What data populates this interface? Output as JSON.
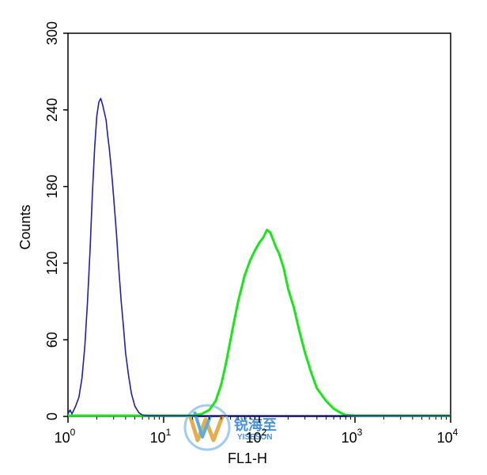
{
  "chart_data": {
    "type": "line",
    "xlabel": "FL1-H",
    "ylabel": "Counts",
    "x_scale": "log",
    "xlim": [
      1,
      10000
    ],
    "ylim": [
      0,
      300
    ],
    "x_ticks": [
      {
        "base": "10",
        "exp": "0",
        "value": 1
      },
      {
        "base": "10",
        "exp": "1",
        "value": 10
      },
      {
        "base": "10",
        "exp": "2",
        "value": 100
      },
      {
        "base": "10",
        "exp": "3",
        "value": 1000
      },
      {
        "base": "10",
        "exp": "4",
        "value": 10000
      }
    ],
    "y_ticks": [
      "0",
      "60",
      "120",
      "180",
      "240",
      "300"
    ],
    "grid": false,
    "series": [
      {
        "color": "#1f1fb0",
        "x": [
          1.0,
          1.05,
          1.1,
          1.2,
          1.3,
          1.4,
          1.5,
          1.6,
          1.7,
          1.8,
          1.9,
          2.0,
          2.1,
          2.2,
          2.3,
          2.4,
          2.5,
          2.6,
          2.7,
          2.8,
          2.9,
          3.0,
          3.2,
          3.4,
          3.6,
          3.8,
          4.0,
          4.3,
          4.6,
          5.0,
          5.5,
          6.0,
          7.0,
          8.0,
          10,
          15,
          30,
          100,
          1000,
          10000
        ],
        "y": [
          2,
          5,
          2,
          8,
          15,
          30,
          55,
          90,
          130,
          175,
          210,
          235,
          246,
          249,
          244,
          238,
          232,
          220,
          210,
          198,
          185,
          172,
          145,
          115,
          90,
          70,
          50,
          32,
          18,
          8,
          3,
          1,
          0,
          0,
          0,
          0,
          0,
          0,
          0,
          0
        ]
      },
      {
        "color": "#19e619",
        "x": [
          1,
          10,
          20,
          25,
          30,
          35,
          40,
          45,
          50,
          55,
          60,
          70,
          80,
          90,
          100,
          110,
          120,
          130,
          140,
          150,
          160,
          180,
          200,
          230,
          260,
          300,
          350,
          400,
          500,
          600,
          700,
          800,
          1000,
          2000,
          10000
        ],
        "y": [
          0,
          0,
          0,
          2,
          5,
          12,
          25,
          42,
          60,
          76,
          90,
          110,
          122,
          130,
          136,
          140,
          146,
          144,
          138,
          132,
          128,
          116,
          100,
          85,
          68,
          50,
          34,
          22,
          12,
          6,
          3,
          1,
          0,
          0,
          0
        ]
      }
    ]
  },
  "watermark": {
    "chinese": "锐海至",
    "latin": "YISESON"
  }
}
